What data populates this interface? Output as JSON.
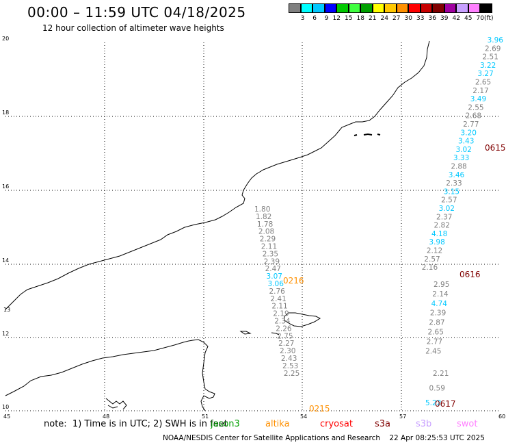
{
  "title": "00:00 – 11:59 UTC 04/18/2025",
  "subtitle": "12 hour collection of altimeter wave heights",
  "legend": {
    "unit": "(ft)",
    "labels": [
      "3",
      "6",
      "9",
      "12",
      "15",
      "18",
      "21",
      "24",
      "27",
      "30",
      "33",
      "36",
      "39",
      "42",
      "45",
      "70"
    ],
    "colors": [
      "#808080",
      "#00ffff",
      "#00c8ff",
      "#0000ff",
      "#00c800",
      "#40ff40",
      "#00a000",
      "#ffff00",
      "#ffc800",
      "#ff9000",
      "#ff0000",
      "#c80000",
      "#800000",
      "#a000a0",
      "#c8a0ff",
      "#ff80ff",
      "#000000"
    ]
  },
  "map": {
    "lat_ticks": [
      "20",
      "18",
      "16",
      "14",
      "12",
      "10"
    ],
    "lon_ticks": [
      "45",
      "48",
      "51",
      "54",
      "57",
      "60"
    ],
    "left_edge_label": "13"
  },
  "passes": [
    {
      "pass_label": "0216",
      "label_color": "#ff9000",
      "points": [
        {
          "v": "1.80",
          "c": "#808080"
        },
        {
          "v": "1.82",
          "c": "#808080"
        },
        {
          "v": "1.78",
          "c": "#808080"
        },
        {
          "v": "2.08",
          "c": "#808080"
        },
        {
          "v": "2.29",
          "c": "#808080"
        },
        {
          "v": "2.11",
          "c": "#808080"
        },
        {
          "v": "2.35",
          "c": "#808080"
        },
        {
          "v": "2.39",
          "c": "#808080"
        },
        {
          "v": "2.47",
          "c": "#808080"
        },
        {
          "v": "3.07",
          "c": "#00c8ff"
        },
        {
          "v": "3.06",
          "c": "#00c8ff"
        },
        {
          "v": "2.76",
          "c": "#808080"
        },
        {
          "v": "2.41",
          "c": "#808080"
        },
        {
          "v": "2.11",
          "c": "#808080"
        },
        {
          "v": "2.19",
          "c": "#808080"
        },
        {
          "v": "2.34",
          "c": "#808080"
        },
        {
          "v": "2.26",
          "c": "#808080"
        },
        {
          "v": "2.75",
          "c": "#808080"
        },
        {
          "v": "2.27",
          "c": "#808080"
        },
        {
          "v": "2.30",
          "c": "#808080"
        },
        {
          "v": "2.43",
          "c": "#808080"
        },
        {
          "v": "2.53",
          "c": "#808080"
        },
        {
          "v": "2.25",
          "c": "#808080"
        }
      ]
    },
    {
      "pass_label": "0215",
      "label_color": "#ff9000",
      "points": []
    },
    {
      "pass_label": "0615",
      "label_color": "#800000",
      "points": [
        {
          "v": "3.96",
          "c": "#00c8ff"
        },
        {
          "v": "2.69",
          "c": "#808080"
        },
        {
          "v": "2.51",
          "c": "#808080"
        },
        {
          "v": "3.22",
          "c": "#00c8ff"
        },
        {
          "v": "3.27",
          "c": "#00c8ff"
        },
        {
          "v": "2.65",
          "c": "#808080"
        },
        {
          "v": "2.17",
          "c": "#808080"
        },
        {
          "v": "3.49",
          "c": "#00c8ff"
        },
        {
          "v": "2.55",
          "c": "#808080"
        },
        {
          "v": "2.68",
          "c": "#808080"
        },
        {
          "v": "2.77",
          "c": "#808080"
        },
        {
          "v": "3.20",
          "c": "#00c8ff"
        },
        {
          "v": "3.43",
          "c": "#00c8ff"
        },
        {
          "v": "3.02",
          "c": "#00c8ff"
        },
        {
          "v": "3.33",
          "c": "#00c8ff"
        },
        {
          "v": "2.88",
          "c": "#808080"
        },
        {
          "v": "3.46",
          "c": "#00c8ff"
        },
        {
          "v": "2.33",
          "c": "#808080"
        },
        {
          "v": "3.15",
          "c": "#00c8ff"
        },
        {
          "v": "2.57",
          "c": "#808080"
        },
        {
          "v": "3.02",
          "c": "#00c8ff"
        },
        {
          "v": "2.37",
          "c": "#808080"
        },
        {
          "v": "2.82",
          "c": "#808080"
        },
        {
          "v": "4.18",
          "c": "#00c8ff"
        },
        {
          "v": "3.98",
          "c": "#00c8ff"
        },
        {
          "v": "2.12",
          "c": "#808080"
        },
        {
          "v": "2.57",
          "c": "#808080"
        },
        {
          "v": "2.16",
          "c": "#808080"
        }
      ]
    },
    {
      "pass_label": "0616",
      "label_color": "#800000",
      "points": [
        {
          "v": "2.95",
          "c": "#808080"
        },
        {
          "v": "2.14",
          "c": "#808080"
        },
        {
          "v": "4.74",
          "c": "#00c8ff"
        },
        {
          "v": "2.39",
          "c": "#808080"
        },
        {
          "v": "2.87",
          "c": "#808080"
        },
        {
          "v": "2.65",
          "c": "#808080"
        },
        {
          "v": "2.77",
          "c": "#808080"
        },
        {
          "v": "2.45",
          "c": "#808080"
        }
      ]
    },
    {
      "pass_label": "0617",
      "label_color": "#800000",
      "points": [
        {
          "v": "2.21",
          "c": "#808080"
        },
        {
          "v": "0.59",
          "c": "#808080"
        },
        {
          "v": "5.22",
          "c": "#00c8ff"
        }
      ]
    }
  ],
  "footer": {
    "note": "note:  1) Time is in UTC; 2) SWH is in feet",
    "satellites": [
      {
        "name": "jason3",
        "color": "#00a000"
      },
      {
        "name": "altika",
        "color": "#ff9000"
      },
      {
        "name": "cryosat",
        "color": "#ff0000"
      },
      {
        "name": "s3a",
        "color": "#800000"
      },
      {
        "name": "s3b",
        "color": "#c8a0ff"
      },
      {
        "name": "swot",
        "color": "#ff80ff"
      }
    ],
    "credit": "NOAA/NESDIS Center for Satellite Applications and Research    22 Apr 08:25:53 UTC 2025"
  }
}
